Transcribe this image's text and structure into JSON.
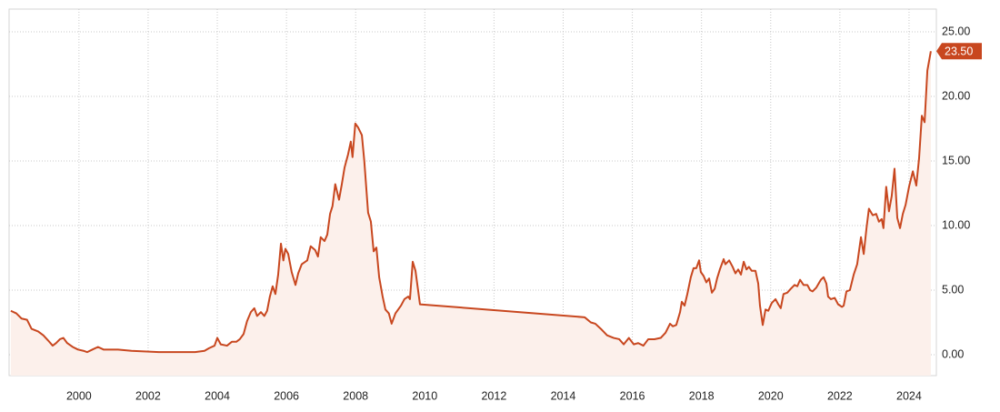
{
  "chart_data": {
    "type": "area",
    "x": [
      1998.03,
      1998.19,
      1998.34,
      1998.5,
      1998.63,
      1998.82,
      1998.97,
      1999.11,
      1999.24,
      1999.34,
      1999.45,
      1999.55,
      1999.66,
      1999.82,
      1999.97,
      2000.13,
      2000.24,
      2000.39,
      2000.55,
      2000.71,
      2001.13,
      2001.52,
      2002.31,
      2003.36,
      2003.63,
      2003.76,
      2003.92,
      2004.0,
      2004.1,
      2004.28,
      2004.42,
      2004.55,
      2004.65,
      2004.76,
      2004.86,
      2004.97,
      2005.07,
      2005.15,
      2005.26,
      2005.36,
      2005.44,
      2005.52,
      2005.6,
      2005.68,
      2005.76,
      2005.84,
      2005.91,
      2005.97,
      2006.05,
      2006.15,
      2006.26,
      2006.34,
      2006.44,
      2006.6,
      2006.7,
      2006.83,
      2006.91,
      2006.99,
      2007.1,
      2007.18,
      2007.26,
      2007.33,
      2007.41,
      2007.52,
      2007.6,
      2007.68,
      2007.78,
      2007.86,
      2007.91,
      2007.99,
      2008.07,
      2008.18,
      2008.25,
      2008.36,
      2008.44,
      2008.52,
      2008.6,
      2008.68,
      2008.78,
      2008.86,
      2008.96,
      2009.04,
      2009.15,
      2009.31,
      2009.41,
      2009.52,
      2009.57,
      2009.65,
      2009.73,
      2009.86,
      2014.62,
      2014.8,
      2014.93,
      2015.09,
      2015.27,
      2015.46,
      2015.62,
      2015.75,
      2015.9,
      2016.04,
      2016.17,
      2016.32,
      2016.46,
      2016.64,
      2016.82,
      2016.96,
      2017.09,
      2017.17,
      2017.27,
      2017.38,
      2017.43,
      2017.51,
      2017.59,
      2017.69,
      2017.77,
      2017.85,
      2017.93,
      2017.98,
      2018.06,
      2018.14,
      2018.22,
      2018.3,
      2018.38,
      2018.45,
      2018.53,
      2018.64,
      2018.69,
      2018.8,
      2018.9,
      2018.98,
      2019.06,
      2019.14,
      2019.22,
      2019.3,
      2019.37,
      2019.45,
      2019.56,
      2019.64,
      2019.69,
      2019.77,
      2019.85,
      2019.93,
      2020.03,
      2020.14,
      2020.22,
      2020.29,
      2020.37,
      2020.48,
      2020.58,
      2020.69,
      2020.77,
      2020.85,
      2020.95,
      2021.06,
      2021.14,
      2021.21,
      2021.32,
      2021.45,
      2021.53,
      2021.61,
      2021.66,
      2021.74,
      2021.85,
      2021.95,
      2022.06,
      2022.11,
      2022.19,
      2022.29,
      2022.4,
      2022.5,
      2022.61,
      2022.69,
      2022.77,
      2022.84,
      2022.95,
      2023.05,
      2023.13,
      2023.21,
      2023.26,
      2023.34,
      2023.42,
      2023.5,
      2023.58,
      2023.66,
      2023.74,
      2023.82,
      2023.9,
      2024.0,
      2024.11,
      2024.21,
      2024.29,
      2024.37,
      2024.45,
      2024.53,
      2024.63
    ],
    "values": [
      3.4,
      3.2,
      2.8,
      2.7,
      2.0,
      1.8,
      1.5,
      1.1,
      0.7,
      0.9,
      1.2,
      1.3,
      0.9,
      0.6,
      0.4,
      0.3,
      0.2,
      0.4,
      0.6,
      0.4,
      0.4,
      0.3,
      0.2,
      0.2,
      0.3,
      0.5,
      0.7,
      1.3,
      0.8,
      0.7,
      1.0,
      1.0,
      1.2,
      1.6,
      2.6,
      3.3,
      3.6,
      3.0,
      3.3,
      3.0,
      3.4,
      4.5,
      5.3,
      4.7,
      6.2,
      8.6,
      7.3,
      8.2,
      7.8,
      6.4,
      5.4,
      6.3,
      7.0,
      7.3,
      8.4,
      8.1,
      7.6,
      9.1,
      8.8,
      9.3,
      10.9,
      11.5,
      13.2,
      12.0,
      13.2,
      14.5,
      15.5,
      16.5,
      15.3,
      17.9,
      17.6,
      17.0,
      15.0,
      11.0,
      10.3,
      8.0,
      8.3,
      6.0,
      4.5,
      3.5,
      3.2,
      2.4,
      3.2,
      3.8,
      4.3,
      4.5,
      4.3,
      7.2,
      6.5,
      3.9,
      2.9,
      2.5,
      2.4,
      2.0,
      1.5,
      1.3,
      1.2,
      0.8,
      1.3,
      0.8,
      0.9,
      0.7,
      1.2,
      1.2,
      1.3,
      1.7,
      2.4,
      2.2,
      2.3,
      3.3,
      4.1,
      3.8,
      4.7,
      6.0,
      6.7,
      6.7,
      7.3,
      6.4,
      6.1,
      5.6,
      5.9,
      4.8,
      5.1,
      5.9,
      6.6,
      7.4,
      7.0,
      7.3,
      6.8,
      6.3,
      6.6,
      6.2,
      7.2,
      6.6,
      6.8,
      6.5,
      6.5,
      5.5,
      3.8,
      2.3,
      3.5,
      3.4,
      4.0,
      4.3,
      3.9,
      3.6,
      4.7,
      4.8,
      5.1,
      5.4,
      5.3,
      5.8,
      5.4,
      5.4,
      5.0,
      4.9,
      5.2,
      5.8,
      6.0,
      5.5,
      4.5,
      4.3,
      4.4,
      3.9,
      3.7,
      3.8,
      4.9,
      5.0,
      6.2,
      7.0,
      9.1,
      7.8,
      9.8,
      11.3,
      10.8,
      10.9,
      10.3,
      10.5,
      9.8,
      13.0,
      11.1,
      12.3,
      14.4,
      10.6,
      9.8,
      10.9,
      11.6,
      13.0,
      14.2,
      13.1,
      15.2,
      18.5,
      18.0,
      22.0,
      23.5
    ],
    "last_value_label": "23.50",
    "color": "#c8471f",
    "area_color": "#fcf0eb",
    "xlim": [
      1997.98,
      2024.79
    ],
    "xticks": [
      2000,
      2002,
      2004,
      2006,
      2008,
      2010,
      2012,
      2014,
      2016,
      2018,
      2020,
      2022,
      2024
    ],
    "ylim": [
      -1.62,
      26.76
    ],
    "yticks": [
      {
        "value": 0,
        "label": "0.00"
      },
      {
        "value": 5,
        "label": "5.00"
      },
      {
        "value": 10,
        "label": "10.00"
      },
      {
        "value": 15,
        "label": "15.00"
      },
      {
        "value": 20,
        "label": "20.00"
      },
      {
        "value": 25,
        "label": "25.00"
      }
    ],
    "grid": true
  }
}
